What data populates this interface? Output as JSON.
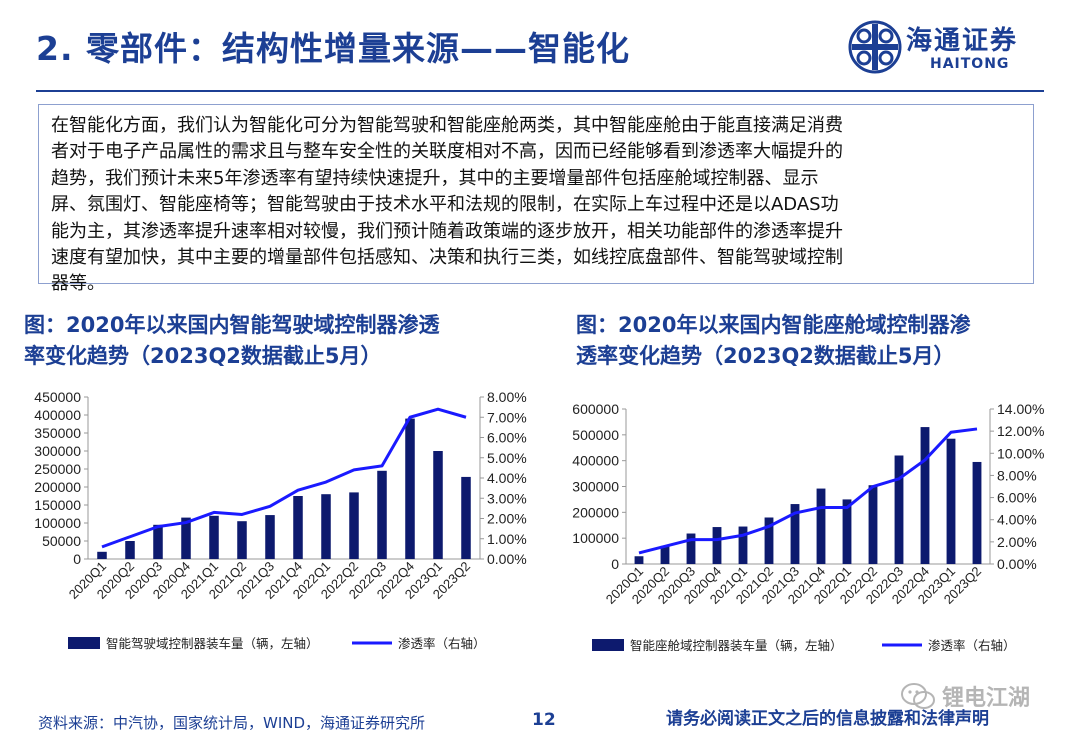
{
  "header": {
    "title": "2. 零部件：结构性增量来源——智能化",
    "logo_cn": "海通证券",
    "logo_en": "HAITONG"
  },
  "intro": {
    "lines": [
      "在智能化方面，我们认为智能化可分为智能驾驶和智能座舱两类，其中智能座舱由于能直接满足消费",
      "者对于电子产品属性的需求且与整车安全性的关联度相对不高，因而已经能够看到渗透率大幅提升的",
      "趋势，我们预计未来5年渗透率有望持续快速提升，其中的主要增量部件包括座舱域控制器、显示",
      "屏、氛围灯、智能座椅等；智能驾驶由于技术水平和法规的限制，在实际上车过程中还是以ADAS功",
      "能为主，其渗透率提升速率相对较慢，我们预计随着政策端的逐步放开，相关功能部件的渗透率提升",
      "速度有望加快，其中主要的增量部件包括感知、决策和执行三类，如线控底盘部件、智能驾驶域控制",
      "器等。"
    ]
  },
  "colors": {
    "bar": "#0d1a6e",
    "line": "#1a1aff",
    "brand": "#1c3f94"
  },
  "chart_data": [
    {
      "type": "bar",
      "title": "图：2020年以来国内智能驾驶域控制器渗透率变化趋势（2023Q2数据截止5月）",
      "title_lines": [
        "图：2020年以来国内智能驾驶域控制器渗透",
        "率变化趋势（2023Q2数据截止5月）"
      ],
      "categories": [
        "2020Q1",
        "2020Q2",
        "2020Q3",
        "2020Q4",
        "2021Q1",
        "2021Q2",
        "2021Q3",
        "2021Q4",
        "2022Q1",
        "2022Q2",
        "2022Q3",
        "2022Q4",
        "2023Q1",
        "2023Q2"
      ],
      "series": [
        {
          "name": "智能驾驶域控制器装车量（辆，左轴）",
          "type": "bar",
          "axis": "left",
          "values": [
            20000,
            50000,
            95000,
            115000,
            120000,
            105000,
            122000,
            175000,
            180000,
            185000,
            245000,
            390000,
            300000,
            228000
          ]
        },
        {
          "name": "渗透率（右轴）",
          "type": "line",
          "axis": "right",
          "values": [
            0.6,
            1.1,
            1.6,
            1.8,
            2.3,
            2.2,
            2.6,
            3.4,
            3.8,
            4.4,
            4.6,
            7.0,
            7.4,
            7.0
          ]
        }
      ],
      "ylim_left": [
        0,
        450000
      ],
      "yticks_left": [
        "0",
        "50000",
        "100000",
        "150000",
        "200000",
        "250000",
        "300000",
        "350000",
        "400000",
        "450000"
      ],
      "ylim_right": [
        0,
        8
      ],
      "yticks_right": [
        "0.00%",
        "1.00%",
        "2.00%",
        "3.00%",
        "4.00%",
        "5.00%",
        "6.00%",
        "7.00%",
        "8.00%"
      ],
      "legend": "bottom"
    },
    {
      "type": "bar",
      "title": "图：2020年以来国内智能座舱域控制器渗透率变化趋势（2023Q2数据截止5月）",
      "title_lines": [
        "图：2020年以来国内智能座舱域控制器渗",
        "透率变化趋势（2023Q2数据截止5月）"
      ],
      "categories": [
        "2020Q1",
        "2020Q2",
        "2020Q3",
        "2020Q4",
        "2021Q1",
        "2021Q2",
        "2021Q3",
        "2021Q4",
        "2022Q1",
        "2022Q2",
        "2022Q3",
        "2022Q4",
        "2023Q1",
        "2023Q2"
      ],
      "series": [
        {
          "name": "智能座舱域控制器装车量（辆，左轴）",
          "type": "bar",
          "axis": "left",
          "values": [
            30000,
            70000,
            118000,
            143000,
            145000,
            180000,
            232000,
            292000,
            250000,
            305000,
            420000,
            530000,
            485000,
            395000
          ]
        },
        {
          "name": "渗透率（右轴）",
          "type": "line",
          "axis": "right",
          "values": [
            1.0,
            1.6,
            2.2,
            2.2,
            2.6,
            3.4,
            4.6,
            5.1,
            5.1,
            7.0,
            7.7,
            9.4,
            11.9,
            12.2
          ]
        }
      ],
      "ylim_left": [
        0,
        600000
      ],
      "yticks_left": [
        "0",
        "100000",
        "200000",
        "300000",
        "400000",
        "500000",
        "600000"
      ],
      "ylim_right": [
        0,
        14
      ],
      "yticks_right": [
        "0.00%",
        "2.00%",
        "4.00%",
        "6.00%",
        "8.00%",
        "10.00%",
        "12.00%",
        "14.00%"
      ],
      "legend": "bottom"
    }
  ],
  "footer": {
    "source": "资料来源：中汽协，国家统计局，WIND，海通证券研究所",
    "page": "12",
    "disclaimer": "请务必阅读正文之后的信息披露和法律声明",
    "watermark": "锂电江湖"
  }
}
